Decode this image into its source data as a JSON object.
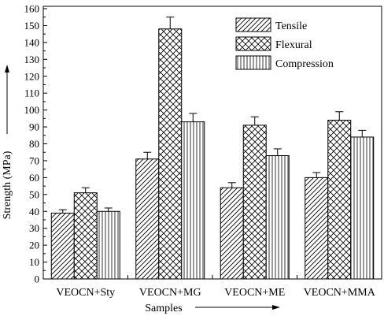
{
  "chart_data": {
    "type": "bar",
    "xlabel": "Samples",
    "ylabel": "Strength (MPa)",
    "ylim": [
      0,
      160
    ],
    "ytick_step": 10,
    "categories": [
      "VEOCN+Sty",
      "VEOCN+MG",
      "VEOCN+ME",
      "VEOCN+MMA"
    ],
    "series": [
      {
        "name": "Tensile",
        "pattern": "diagonal-hatch",
        "values": [
          39,
          71,
          54,
          60
        ],
        "errors": [
          2,
          4,
          3,
          3
        ]
      },
      {
        "name": "Flexural",
        "pattern": "cross-hatch",
        "values": [
          51,
          148,
          91,
          94
        ],
        "errors": [
          3,
          7,
          5,
          5
        ]
      },
      {
        "name": "Compression",
        "pattern": "vertical-lines",
        "values": [
          40,
          93,
          73,
          84
        ],
        "errors": [
          2,
          5,
          4,
          4
        ]
      }
    ],
    "legend_position": "top-right",
    "grid": false,
    "colors": {
      "fill": "#ffffff",
      "stroke": "#000000"
    }
  }
}
